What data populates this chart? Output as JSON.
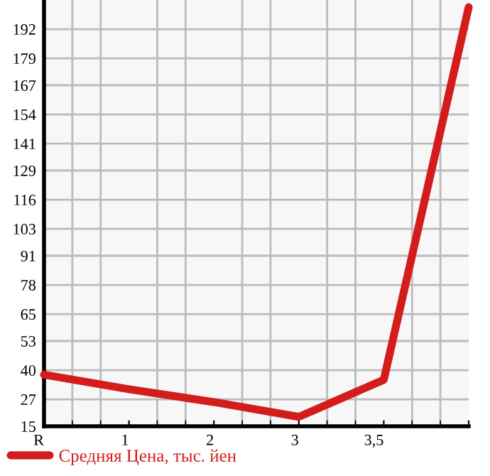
{
  "chart_data": {
    "type": "line",
    "categories": [
      "R",
      "1",
      "2",
      "3",
      "3,5",
      null
    ],
    "series": [
      {
        "name": "Средняя Цена, тыс. йен",
        "color": "#d41c1c",
        "values": [
          38,
          31.5,
          25.8,
          19.2,
          35.7,
          201.8
        ]
      }
    ],
    "ylim": [
      15,
      205
    ],
    "yticks": [
      15,
      27,
      40,
      53,
      65,
      78,
      91,
      103,
      116,
      129,
      141,
      154,
      167,
      179,
      192
    ],
    "grid": true,
    "legend": "bottom left",
    "marker": "none",
    "line_style": "solid"
  }
}
